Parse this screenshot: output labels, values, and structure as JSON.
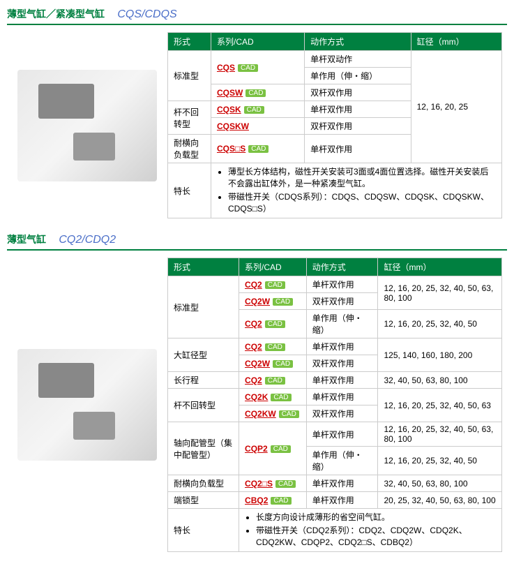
{
  "colors": {
    "green": "#008040",
    "blue": "#4a6ec8",
    "red": "#c00",
    "badge": "#7ac142"
  },
  "cad_label": "CAD",
  "headers": [
    "形式",
    "系列/CAD",
    "动作方式",
    "缸径（mm）"
  ],
  "section1": {
    "title_cn": "薄型气缸／紧凑型气缸",
    "title_model": "CQS/CDQS",
    "rows": [
      {
        "type": "标准型",
        "type_rowspan": 3,
        "series": "CQS",
        "action": "单杆双动作",
        "action2": "单作用（伸・缩）",
        "bore": "12, 16, 20, 25",
        "bore_rowspan": 5
      },
      {
        "series": "CQSW",
        "action": "双杆双作用"
      },
      {
        "type": "杆不回转型",
        "type_rowspan": 2,
        "series": "CQSK",
        "action": "单杆双作用"
      },
      {
        "series": "CQSKW",
        "action": "双杆双作用"
      },
      {
        "type": "耐横向负载型",
        "series": "CQS□S",
        "action": "单杆双作用"
      }
    ],
    "feature_label": "特长",
    "features": [
      "薄型长方体结构，磁性开关安装可3面或4面位置选择。磁性开关安装后不会露出缸体外，是一种紧凑型气缸。",
      "带磁性开关（CDQS系列）：CDQS、CDQSW、CDQSK、CDQSKW、CDQS□S）"
    ]
  },
  "section2": {
    "title_cn": "薄型气缸",
    "title_model": "CQ2/CDQ2",
    "rows": [
      {
        "type": "标准型",
        "type_rowspan": 3,
        "series": "CQ2",
        "action": "单杆双作用",
        "bore": "12, 16, 20, 25, 32, 40, 50, 63, 80, 100",
        "bore_rowspan": 2
      },
      {
        "series": "CQ2W",
        "action": "双杆双作用"
      },
      {
        "series": "CQ2",
        "action": "单作用（伸・缩）",
        "bore": "12, 16, 20, 25, 32, 40, 50"
      },
      {
        "type": "大缸径型",
        "type_rowspan": 2,
        "series": "CQ2",
        "action": "单杆双作用",
        "bore": "125, 140, 160, 180, 200",
        "bore_rowspan": 2
      },
      {
        "series": "CQ2W",
        "action": "双杆双作用"
      },
      {
        "type": "长行程",
        "series": "CQ2",
        "action": "单杆双作用",
        "bore": "32, 40, 50, 63, 80, 100"
      },
      {
        "type": "杆不回转型",
        "type_rowspan": 2,
        "series": "CQ2K",
        "action": "单杆双作用",
        "bore": "12, 16, 20, 25, 32, 40, 50, 63",
        "bore_rowspan": 2
      },
      {
        "series": "CQ2KW",
        "action": "双杆双作用"
      },
      {
        "type": "轴向配管型（集中配管型）",
        "type_rowspan": 2,
        "series": "CQP2",
        "series_rowspan": 2,
        "action": "单杆双作用",
        "bore": "12, 16, 20, 25, 32, 40, 50, 63, 80, 100"
      },
      {
        "action": "单作用（伸・缩）",
        "bore": "12, 16, 20, 25, 32, 40, 50"
      },
      {
        "type": "耐横向负载型",
        "series": "CQ2□S",
        "action": "单杆双作用",
        "bore": "32, 40, 50, 63, 80, 100"
      },
      {
        "type": "端锁型",
        "series": "CBQ2",
        "action": "单杆双作用",
        "bore": "20, 25, 32, 40, 50, 63, 80, 100"
      }
    ],
    "feature_label": "特长",
    "features": [
      "长度方向设计成薄形的省空间气缸。",
      "带磁性开关（CDQ2系列）：CDQ2、CDQ2W、CDQ2K、CDQ2KW、CDQP2、CDQ2□S、CDBQ2）"
    ]
  }
}
